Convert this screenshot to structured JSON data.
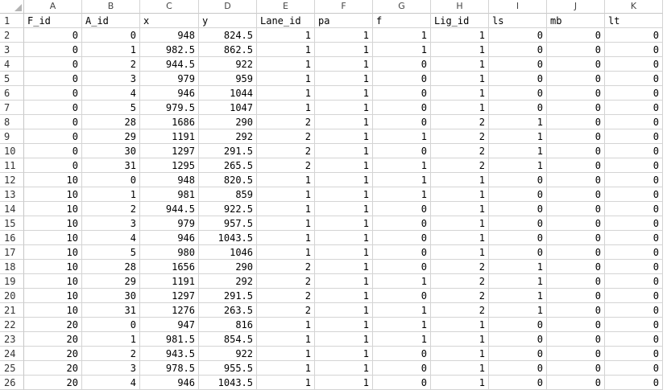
{
  "sheet": {
    "column_headers": [
      "A",
      "B",
      "C",
      "D",
      "E",
      "F",
      "G",
      "H",
      "I",
      "J",
      "K"
    ],
    "row_numbers": [
      "1",
      "2",
      "3",
      "4",
      "5",
      "6",
      "7",
      "8",
      "9",
      "10",
      "11",
      "12",
      "13",
      "14",
      "15",
      "16",
      "17",
      "18",
      "19",
      "20",
      "21",
      "22",
      "23",
      "24",
      "25",
      "26"
    ],
    "header_row": [
      "F_id",
      "A_id",
      "x",
      "y",
      "Lane_id",
      "pa",
      "f",
      "Lig_id",
      "ls",
      "mb",
      "lt"
    ],
    "rows": [
      [
        "0",
        "0",
        "948",
        "824.5",
        "1",
        "1",
        "1",
        "1",
        "0",
        "0",
        "0"
      ],
      [
        "0",
        "1",
        "982.5",
        "862.5",
        "1",
        "1",
        "1",
        "1",
        "0",
        "0",
        "0"
      ],
      [
        "0",
        "2",
        "944.5",
        "922",
        "1",
        "1",
        "0",
        "1",
        "0",
        "0",
        "0"
      ],
      [
        "0",
        "3",
        "979",
        "959",
        "1",
        "1",
        "0",
        "1",
        "0",
        "0",
        "0"
      ],
      [
        "0",
        "4",
        "946",
        "1044",
        "1",
        "1",
        "0",
        "1",
        "0",
        "0",
        "0"
      ],
      [
        "0",
        "5",
        "979.5",
        "1047",
        "1",
        "1",
        "0",
        "1",
        "0",
        "0",
        "0"
      ],
      [
        "0",
        "28",
        "1686",
        "290",
        "2",
        "1",
        "0",
        "2",
        "1",
        "0",
        "0"
      ],
      [
        "0",
        "29",
        "1191",
        "292",
        "2",
        "1",
        "1",
        "2",
        "1",
        "0",
        "0"
      ],
      [
        "0",
        "30",
        "1297",
        "291.5",
        "2",
        "1",
        "0",
        "2",
        "1",
        "0",
        "0"
      ],
      [
        "0",
        "31",
        "1295",
        "265.5",
        "2",
        "1",
        "1",
        "2",
        "1",
        "0",
        "0"
      ],
      [
        "10",
        "0",
        "948",
        "820.5",
        "1",
        "1",
        "1",
        "1",
        "0",
        "0",
        "0"
      ],
      [
        "10",
        "1",
        "981",
        "859",
        "1",
        "1",
        "1",
        "1",
        "0",
        "0",
        "0"
      ],
      [
        "10",
        "2",
        "944.5",
        "922.5",
        "1",
        "1",
        "0",
        "1",
        "0",
        "0",
        "0"
      ],
      [
        "10",
        "3",
        "979",
        "957.5",
        "1",
        "1",
        "0",
        "1",
        "0",
        "0",
        "0"
      ],
      [
        "10",
        "4",
        "946",
        "1043.5",
        "1",
        "1",
        "0",
        "1",
        "0",
        "0",
        "0"
      ],
      [
        "10",
        "5",
        "980",
        "1046",
        "1",
        "1",
        "0",
        "1",
        "0",
        "0",
        "0"
      ],
      [
        "10",
        "28",
        "1656",
        "290",
        "2",
        "1",
        "0",
        "2",
        "1",
        "0",
        "0"
      ],
      [
        "10",
        "29",
        "1191",
        "292",
        "2",
        "1",
        "1",
        "2",
        "1",
        "0",
        "0"
      ],
      [
        "10",
        "30",
        "1297",
        "291.5",
        "2",
        "1",
        "0",
        "2",
        "1",
        "0",
        "0"
      ],
      [
        "10",
        "31",
        "1276",
        "263.5",
        "2",
        "1",
        "1",
        "2",
        "1",
        "0",
        "0"
      ],
      [
        "20",
        "0",
        "947",
        "816",
        "1",
        "1",
        "1",
        "1",
        "0",
        "0",
        "0"
      ],
      [
        "20",
        "1",
        "981.5",
        "854.5",
        "1",
        "1",
        "1",
        "1",
        "0",
        "0",
        "0"
      ],
      [
        "20",
        "2",
        "943.5",
        "922",
        "1",
        "1",
        "0",
        "1",
        "0",
        "0",
        "0"
      ],
      [
        "20",
        "3",
        "978.5",
        "955.5",
        "1",
        "1",
        "0",
        "1",
        "0",
        "0",
        "0"
      ],
      [
        "20",
        "4",
        "946",
        "1043.5",
        "1",
        "1",
        "0",
        "1",
        "0",
        "0",
        "0"
      ]
    ]
  }
}
